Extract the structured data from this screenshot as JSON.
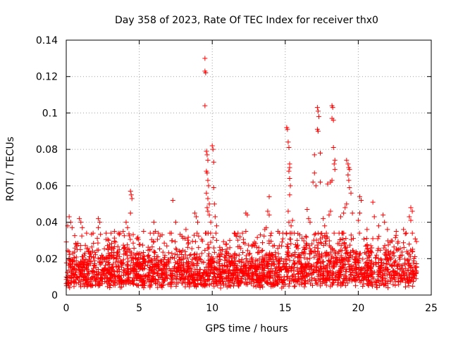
{
  "chart_data": {
    "type": "scatter",
    "title": "Day 358 of 2023, Rate Of TEC Index for receiver thx0",
    "xlabel": "GPS time / hours",
    "ylabel": "ROTI / TECUs",
    "xlim": [
      0,
      25
    ],
    "ylim": [
      0,
      0.14
    ],
    "x_ticks": [
      "0",
      "5",
      "10",
      "15",
      "20",
      "25"
    ],
    "y_ticks": [
      "0",
      "0.02",
      "0.04",
      "0.06",
      "0.08",
      "0.1",
      "0.12",
      "0.14"
    ],
    "grid": true,
    "marker": "+",
    "series": [
      {
        "name": "ROTI",
        "color": "#ff0000",
        "points": [
          [
            9.5,
            0.13
          ],
          [
            9.5,
            0.123
          ],
          [
            9.55,
            0.122
          ],
          [
            9.5,
            0.104
          ],
          [
            9.6,
            0.079
          ],
          [
            9.65,
            0.077
          ],
          [
            9.7,
            0.074
          ],
          [
            9.6,
            0.068
          ],
          [
            9.65,
            0.067
          ],
          [
            9.7,
            0.063
          ],
          [
            9.75,
            0.06
          ],
          [
            9.6,
            0.056
          ],
          [
            9.7,
            0.053
          ],
          [
            9.8,
            0.05
          ],
          [
            9.65,
            0.048
          ],
          [
            9.7,
            0.046
          ],
          [
            9.8,
            0.044
          ],
          [
            9.9,
            0.04
          ],
          [
            10.0,
            0.082
          ],
          [
            10.05,
            0.08
          ],
          [
            10.1,
            0.073
          ],
          [
            10.1,
            0.059
          ],
          [
            10.15,
            0.05
          ],
          [
            10.2,
            0.043
          ],
          [
            10.3,
            0.038
          ],
          [
            10.25,
            0.034
          ],
          [
            10.3,
            0.03
          ],
          [
            4.4,
            0.057
          ],
          [
            4.45,
            0.055
          ],
          [
            4.5,
            0.053
          ],
          [
            4.4,
            0.045
          ],
          [
            4.1,
            0.04
          ],
          [
            4.2,
            0.037
          ],
          [
            3.9,
            0.035
          ],
          [
            7.3,
            0.052
          ],
          [
            6.0,
            0.04
          ],
          [
            6.1,
            0.035
          ],
          [
            7.5,
            0.04
          ],
          [
            8.8,
            0.045
          ],
          [
            8.9,
            0.043
          ],
          [
            9.0,
            0.04
          ],
          [
            12.3,
            0.045
          ],
          [
            12.4,
            0.044
          ],
          [
            12.3,
            0.035
          ],
          [
            13.9,
            0.054
          ],
          [
            13.8,
            0.046
          ],
          [
            13.9,
            0.044
          ],
          [
            13.7,
            0.037
          ],
          [
            13.6,
            0.036
          ],
          [
            15.1,
            0.092
          ],
          [
            15.15,
            0.091
          ],
          [
            15.2,
            0.084
          ],
          [
            15.25,
            0.081
          ],
          [
            15.3,
            0.072
          ],
          [
            15.3,
            0.07
          ],
          [
            15.25,
            0.068
          ],
          [
            15.3,
            0.064
          ],
          [
            15.35,
            0.06
          ],
          [
            15.3,
            0.055
          ],
          [
            15.2,
            0.046
          ],
          [
            15.25,
            0.04
          ],
          [
            15.4,
            0.038
          ],
          [
            15.5,
            0.041
          ],
          [
            17.2,
            0.103
          ],
          [
            17.25,
            0.101
          ],
          [
            17.3,
            0.098
          ],
          [
            17.2,
            0.091
          ],
          [
            17.25,
            0.09
          ],
          [
            17.4,
            0.078
          ],
          [
            17.0,
            0.077
          ],
          [
            17.0,
            0.067
          ],
          [
            16.9,
            0.062
          ],
          [
            17.1,
            0.06
          ],
          [
            17.4,
            0.062
          ],
          [
            16.5,
            0.047
          ],
          [
            16.6,
            0.042
          ],
          [
            16.7,
            0.04
          ],
          [
            17.6,
            0.042
          ],
          [
            17.7,
            0.038
          ],
          [
            18.2,
            0.104
          ],
          [
            18.25,
            0.103
          ],
          [
            18.2,
            0.097
          ],
          [
            18.3,
            0.096
          ],
          [
            18.3,
            0.081
          ],
          [
            18.4,
            0.074
          ],
          [
            18.35,
            0.072
          ],
          [
            18.4,
            0.069
          ],
          [
            18.2,
            0.063
          ],
          [
            18.1,
            0.062
          ],
          [
            17.9,
            0.061
          ],
          [
            18.0,
            0.044
          ],
          [
            18.1,
            0.046
          ],
          [
            19.2,
            0.074
          ],
          [
            19.3,
            0.072
          ],
          [
            19.35,
            0.07
          ],
          [
            19.4,
            0.069
          ],
          [
            19.3,
            0.066
          ],
          [
            19.35,
            0.063
          ],
          [
            19.4,
            0.059
          ],
          [
            19.5,
            0.056
          ],
          [
            19.2,
            0.05
          ],
          [
            19.1,
            0.048
          ],
          [
            19.6,
            0.045
          ],
          [
            19.0,
            0.045
          ],
          [
            18.8,
            0.043
          ],
          [
            20.1,
            0.054
          ],
          [
            20.2,
            0.052
          ],
          [
            20.1,
            0.045
          ],
          [
            20.0,
            0.041
          ],
          [
            21.0,
            0.051
          ],
          [
            21.1,
            0.043
          ],
          [
            21.7,
            0.044
          ],
          [
            21.8,
            0.04
          ],
          [
            22.0,
            0.036
          ],
          [
            23.6,
            0.048
          ],
          [
            23.7,
            0.046
          ],
          [
            23.5,
            0.043
          ],
          [
            23.6,
            0.041
          ],
          [
            0.2,
            0.043
          ],
          [
            0.3,
            0.04
          ],
          [
            0.1,
            0.038
          ],
          [
            0.4,
            0.037
          ],
          [
            0.9,
            0.042
          ],
          [
            1.0,
            0.04
          ],
          [
            1.1,
            0.037
          ],
          [
            2.2,
            0.042
          ],
          [
            2.3,
            0.04
          ],
          [
            2.2,
            0.037
          ],
          [
            3.3,
            0.035
          ],
          [
            5.3,
            0.035
          ],
          [
            8.2,
            0.036
          ],
          [
            11.2,
            0.03
          ],
          [
            11.9,
            0.032
          ],
          [
            12.8,
            0.028
          ],
          [
            13.3,
            0.033
          ],
          [
            14.5,
            0.035
          ],
          [
            16.0,
            0.033
          ],
          [
            20.6,
            0.036
          ],
          [
            21.4,
            0.038
          ],
          [
            22.6,
            0.035
          ],
          [
            23.1,
            0.036
          ]
        ],
        "band_description": "dense cluster of samples between 0.003 and 0.03 across 0-24 h"
      }
    ]
  }
}
